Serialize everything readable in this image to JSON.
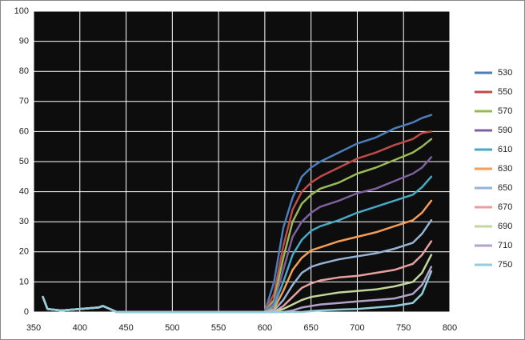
{
  "chart_data": {
    "type": "line",
    "x": [
      360,
      365,
      380,
      400,
      420,
      425,
      440,
      500,
      560,
      600,
      610,
      620,
      630,
      640,
      650,
      660,
      680,
      700,
      720,
      740,
      760,
      770,
      780
    ],
    "xlim": [
      350,
      800
    ],
    "xticks": [
      350,
      400,
      450,
      500,
      550,
      600,
      650,
      700,
      750,
      800
    ],
    "ylim": [
      0,
      100
    ],
    "yticks": [
      0,
      10,
      20,
      30,
      40,
      50,
      60,
      70,
      80,
      90,
      100
    ],
    "grid": true,
    "legend": "right",
    "series": [
      {
        "name": "530",
        "color": "#4a7ebb",
        "values": [
          5,
          1,
          0.5,
          1,
          1.5,
          2,
          0,
          0,
          0,
          0,
          10,
          28,
          38,
          45,
          48,
          50,
          53,
          56,
          58,
          61,
          63,
          64.5,
          65.5
        ]
      },
      {
        "name": "550",
        "color": "#be4b48",
        "values": [
          5,
          1,
          0.5,
          1,
          1.5,
          2,
          0,
          0,
          0,
          0,
          6,
          22,
          34,
          40,
          43,
          45,
          48,
          51,
          53,
          55.5,
          57.5,
          59.5,
          60
        ]
      },
      {
        "name": "570",
        "color": "#98b954",
        "values": [
          5,
          1,
          0.5,
          1,
          1.5,
          2,
          0,
          0,
          0,
          0,
          4,
          18,
          30,
          36,
          39,
          41,
          43,
          46,
          48,
          50.5,
          53,
          55,
          57.5
        ]
      },
      {
        "name": "590",
        "color": "#7d60a0",
        "values": [
          5,
          1,
          0.5,
          1,
          1.5,
          2,
          0,
          0,
          0,
          0,
          3,
          14,
          25,
          30,
          33,
          35,
          37,
          39.5,
          41,
          43.5,
          46,
          48,
          51.5
        ]
      },
      {
        "name": "610",
        "color": "#46aac5",
        "values": [
          5,
          1,
          0.5,
          1,
          1.5,
          2,
          0,
          0,
          0,
          0,
          2,
          10,
          19,
          24,
          27,
          28.5,
          30.5,
          33,
          35,
          37,
          39,
          41.5,
          45
        ]
      },
      {
        "name": "630",
        "color": "#f59d56",
        "values": [
          5,
          1,
          0.5,
          1,
          1.5,
          2,
          0,
          0,
          0,
          0,
          1,
          7,
          14,
          18,
          20.5,
          21.5,
          23.5,
          25,
          26.5,
          28.5,
          30.5,
          33,
          37
        ]
      },
      {
        "name": "650",
        "color": "#95b3d7",
        "values": [
          5,
          1,
          0.5,
          1,
          1.5,
          2,
          0,
          0,
          0,
          0,
          0.5,
          4,
          9,
          13,
          15,
          16,
          17.5,
          18.5,
          19.5,
          21,
          23,
          26,
          30.5
        ]
      },
      {
        "name": "670",
        "color": "#e6a0a0",
        "values": [
          5,
          1,
          0.5,
          1,
          1.5,
          2,
          0,
          0,
          0,
          0,
          0,
          2,
          5,
          8,
          9.5,
          10.5,
          11.5,
          12,
          13,
          14,
          16,
          19,
          23.5
        ]
      },
      {
        "name": "690",
        "color": "#c3d69b",
        "values": [
          5,
          1,
          0.5,
          1,
          1.5,
          2,
          0,
          0,
          0,
          0,
          0,
          1,
          2.5,
          4,
          5,
          5.5,
          6.5,
          7,
          7.5,
          8.5,
          10,
          13,
          19
        ]
      },
      {
        "name": "710",
        "color": "#b3a2c7",
        "values": [
          5,
          1,
          0.5,
          1,
          1.5,
          2,
          0,
          0,
          0,
          0,
          0,
          0,
          0.5,
          1.5,
          2,
          2.5,
          3,
          3.5,
          4,
          4.5,
          6,
          9,
          15
        ]
      },
      {
        "name": "750",
        "color": "#93cddd",
        "values": [
          5,
          1,
          0.5,
          1,
          1.5,
          2,
          0,
          0,
          0,
          0,
          0,
          0,
          0,
          0,
          0.3,
          0.5,
          0.8,
          1,
          1.5,
          2,
          3,
          6,
          13.5
        ]
      }
    ]
  }
}
